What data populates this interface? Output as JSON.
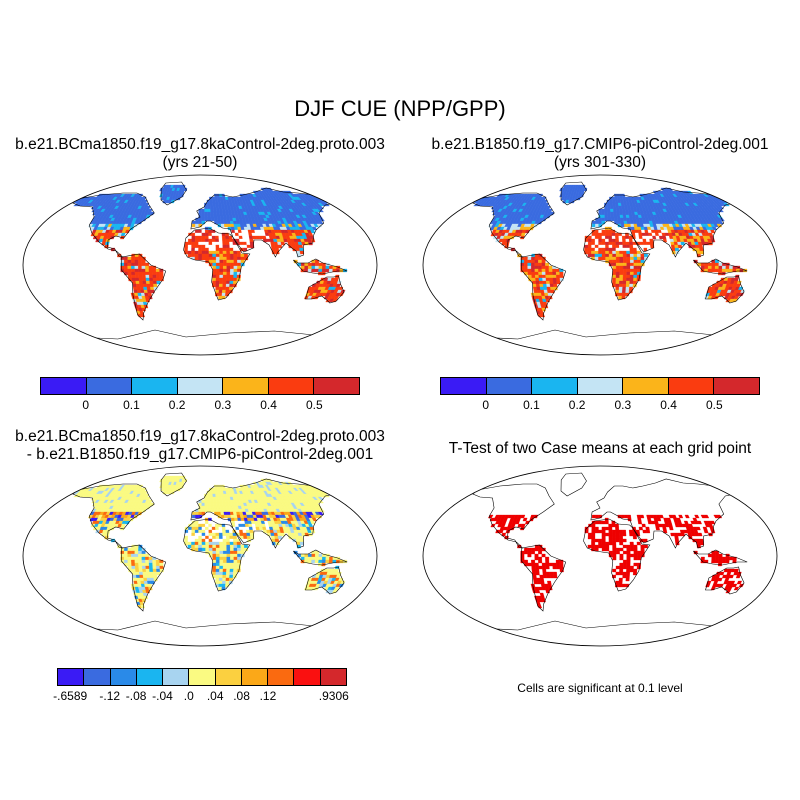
{
  "figure": {
    "title": "DJF CUE (NPP/GPP)"
  },
  "panels": [
    {
      "id": "p1",
      "title_line1": "b.e21.BCma1850.f19_g17.8kaControl-2deg.proto.003",
      "title_line2": "(yrs 21-50)",
      "palette": "cue"
    },
    {
      "id": "p2",
      "title_line1": "b.e21.B1850.f19_g17.CMIP6-piControl-2deg.001",
      "title_line2": "(yrs 301-330)",
      "palette": "cue"
    },
    {
      "id": "p3",
      "title_line1": "b.e21.BCma1850.f19_g17.8kaControl-2deg.proto.003",
      "title_line2": "- b.e21.B1850.f19_g17.CMIP6-piControl-2deg.001",
      "palette": "diff"
    },
    {
      "id": "p4",
      "title_line1": "T-Test of two Case means at each grid point",
      "title_line2": "",
      "palette": "sig"
    }
  ],
  "colorbar_top": {
    "colors": [
      "#3a1bf5",
      "#3a6be0",
      "#1ab5f0",
      "#c4e4f4",
      "#fbb41a",
      "#fa3c10",
      "#d4282c"
    ],
    "labels": [
      "0",
      "0.1",
      "0.2",
      "0.3",
      "0.4",
      "0.5"
    ]
  },
  "colorbar_diff": {
    "colors": [
      "#3a1bf5",
      "#3a6be0",
      "#2a8ae8",
      "#1ab5f0",
      "#a8d4f0",
      "#fafa82",
      "#fbd040",
      "#fba818",
      "#fa6a10",
      "#fa1010",
      "#d4282c"
    ],
    "labels": [
      "-.6589",
      "-.12",
      "-.08",
      "-.04",
      ".0",
      ".04",
      ".08",
      ".12",
      ".9306"
    ]
  },
  "significance_note": "Cells are significant at 0.1 level",
  "colors": {
    "sig": "#ee0000",
    "coast": "#000000"
  }
}
